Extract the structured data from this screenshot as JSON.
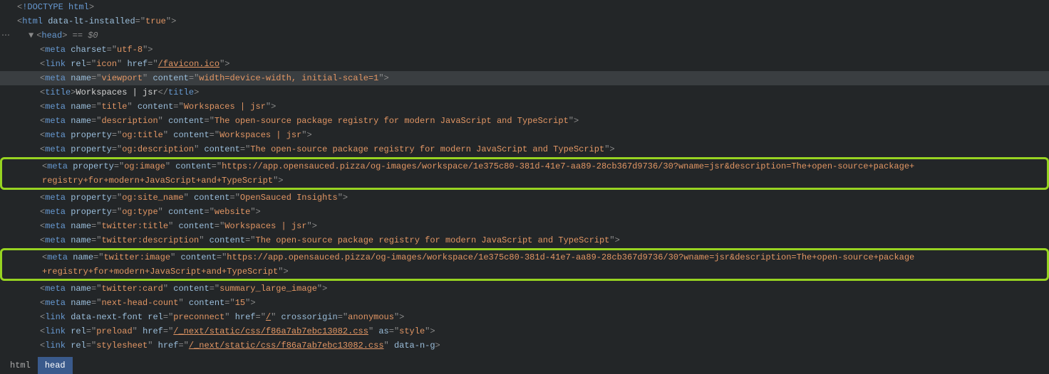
{
  "lines": {
    "l0": {
      "tag": "!DOCTYPE html"
    },
    "l1": {
      "tag": "html",
      "attr": "data-lt-installed",
      "val": "true"
    },
    "l2": {
      "tag": "head",
      "suffix": " == $0"
    },
    "l3": {
      "tag": "meta",
      "a1n": "charset",
      "a1v": "utf-8"
    },
    "l4": {
      "tag": "link",
      "a1n": "rel",
      "a1v": "icon",
      "a2n": "href",
      "a2v": "/favicon.ico"
    },
    "l5": {
      "tag": "meta",
      "a1n": "name",
      "a1v": "viewport",
      "a2n": "content",
      "a2v": "width=device-width, initial-scale=1"
    },
    "l6": {
      "tag": "title",
      "text": "Workspaces | jsr",
      "close": "title"
    },
    "l7": {
      "tag": "meta",
      "a1n": "name",
      "a1v": "title",
      "a2n": "content",
      "a2v": "Workspaces | jsr"
    },
    "l8": {
      "tag": "meta",
      "a1n": "name",
      "a1v": "description",
      "a2n": "content",
      "a2v": "The open-source package registry for modern JavaScript and TypeScript"
    },
    "l9": {
      "tag": "meta",
      "a1n": "property",
      "a1v": "og:title",
      "a2n": "content",
      "a2v": "Workspaces | jsr"
    },
    "l10": {
      "tag": "meta",
      "a1n": "property",
      "a1v": "og:description",
      "a2n": "content",
      "a2v": "The open-source package registry for modern JavaScript and TypeScript"
    },
    "hl1a": {
      "tag": "meta",
      "a1n": "property",
      "a1v": "og:image",
      "a2n": "content",
      "a2v_p1": "https://app.opensauced.pizza/og-images/workspace/1e375c80-381d-41e7-aa89-28cb367d9736/30?wname=jsr&description=The+open-source+package+",
      "a2v_p2": "registry+for+modern+JavaScript+and+TypeScript"
    },
    "l12": {
      "tag": "meta",
      "a1n": "property",
      "a1v": "og:site_name",
      "a2n": "content",
      "a2v": "OpenSauced Insights"
    },
    "l13": {
      "tag": "meta",
      "a1n": "property",
      "a1v": "og:type",
      "a2n": "content",
      "a2v": "website"
    },
    "l14": {
      "tag": "meta",
      "a1n": "name",
      "a1v": "twitter:title",
      "a2n": "content",
      "a2v": "Workspaces | jsr"
    },
    "l15": {
      "tag": "meta",
      "a1n": "name",
      "a1v": "twitter:description",
      "a2n": "content",
      "a2v": "The open-source package registry for modern JavaScript and TypeScript"
    },
    "hl2a": {
      "tag": "meta",
      "a1n": "name",
      "a1v": "twitter:image",
      "a2n": "content",
      "a2v_p1": "https://app.opensauced.pizza/og-images/workspace/1e375c80-381d-41e7-aa89-28cb367d9736/30?wname=jsr&description=The+open-source+package",
      "a2v_p2": "+registry+for+modern+JavaScript+and+TypeScript"
    },
    "l17": {
      "tag": "meta",
      "a1n": "name",
      "a1v": "twitter:card",
      "a2n": "content",
      "a2v": "summary_large_image"
    },
    "l18": {
      "tag": "meta",
      "a1n": "name",
      "a1v": "next-head-count",
      "a2n": "content",
      "a2v": "15"
    },
    "l19": {
      "tag": "link",
      "a1n": "data-next-font",
      "a2n": "rel",
      "a2v": "preconnect",
      "a3n": "href",
      "a3v": "/",
      "a4n": "crossorigin",
      "a4v": "anonymous"
    },
    "l20": {
      "tag": "link",
      "a1n": "rel",
      "a1v": "preload",
      "a2n": "href",
      "a2v": "/_next/static/css/f86a7ab7ebc13082.css",
      "a3n": "as",
      "a3v": "style"
    },
    "l21": {
      "tag": "link",
      "a1n": "rel",
      "a1v": "stylesheet",
      "a2n": "href",
      "a2v": "/_next/static/css/f86a7ab7ebc13082.css",
      "a3n": "data-n-g"
    }
  },
  "footer": {
    "tab1": "html",
    "tab2": "head"
  }
}
